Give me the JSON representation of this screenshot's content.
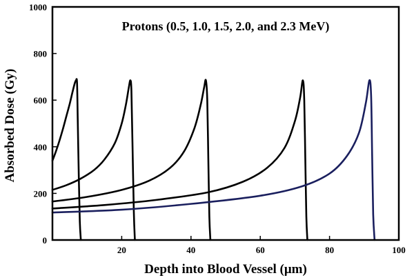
{
  "chart_data": {
    "type": "line",
    "title": "Protons (0.5, 1.0, 1.5, 2.0, and 2.3 MeV)",
    "xlabel": "Depth into Blood Vessel (μm)",
    "ylabel": "Absorbed Dose (Gy)",
    "xlim": [
      0,
      100
    ],
    "ylim": [
      0,
      1000
    ],
    "xticks": [
      20,
      40,
      60,
      80,
      100
    ],
    "yticks": [
      0,
      200,
      400,
      600,
      800,
      1000
    ],
    "grid": false,
    "legend": "none",
    "series": [
      {
        "color": "#000000",
        "x": [
          0,
          1,
          2,
          3,
          4,
          5,
          5.8,
          6.4,
          6.8,
          7.1,
          7.3,
          7.6,
          7.9,
          8.2
        ],
        "y": [
          340,
          380,
          425,
          475,
          530,
          585,
          635,
          670,
          685,
          675,
          520,
          280,
          80,
          0
        ]
      },
      {
        "color": "#000000",
        "x": [
          0,
          4,
          8,
          12,
          15,
          18,
          20,
          21.2,
          22,
          22.5,
          22.8,
          23.1,
          23.5,
          23.8
        ],
        "y": [
          215,
          235,
          262,
          300,
          345,
          415,
          500,
          580,
          650,
          685,
          640,
          420,
          120,
          0
        ]
      },
      {
        "color": "#000000",
        "x": [
          0,
          10,
          20,
          28,
          34,
          38,
          41,
          42.8,
          43.8,
          44.3,
          44.7,
          45.0,
          45.3,
          45.6
        ],
        "y": [
          165,
          185,
          215,
          255,
          310,
          380,
          480,
          580,
          655,
          685,
          600,
          350,
          100,
          0
        ]
      },
      {
        "color": "#000000",
        "x": [
          0,
          15,
          30,
          45,
          55,
          62,
          67,
          70,
          71.5,
          72.3,
          72.7,
          73.0,
          73.3,
          73.6
        ],
        "y": [
          135,
          150,
          172,
          205,
          250,
          310,
          395,
          510,
          610,
          685,
          600,
          350,
          100,
          0
        ]
      },
      {
        "color": "#1a1f5e",
        "x": [
          0,
          20,
          40,
          60,
          72,
          80,
          85,
          88.5,
          90.5,
          91.5,
          92.0,
          92.3,
          92.6,
          93.0
        ],
        "y": [
          118,
          130,
          155,
          190,
          230,
          285,
          360,
          460,
          590,
          685,
          620,
          360,
          110,
          0
        ]
      }
    ]
  }
}
